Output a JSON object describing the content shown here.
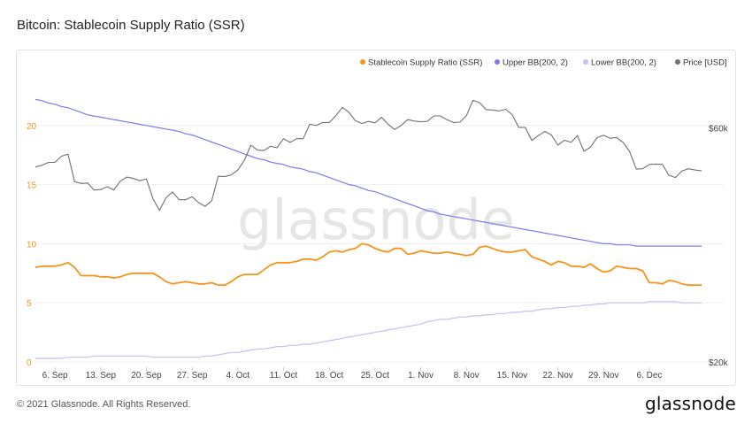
{
  "title": "Bitcoin: Stablecoin Supply Ratio (SSR)",
  "footer": {
    "copyright": "© 2021 Glassnode. All Rights Reserved.",
    "brand": "glassnode"
  },
  "watermark": "glassnode",
  "colors": {
    "ssr": "#f7931a",
    "upper": "#7f7cea",
    "lower": "#c3c1f5",
    "price": "#707070",
    "grid": "#efefef",
    "left_axis": "#f7931a",
    "right_axis": "#444444"
  },
  "chart_data": {
    "type": "line",
    "x": [
      "2021-09-03",
      "2021-09-04",
      "2021-09-05",
      "2021-09-06",
      "2021-09-07",
      "2021-09-08",
      "2021-09-09",
      "2021-09-10",
      "2021-09-11",
      "2021-09-12",
      "2021-09-13",
      "2021-09-14",
      "2021-09-15",
      "2021-09-16",
      "2021-09-17",
      "2021-09-18",
      "2021-09-19",
      "2021-09-20",
      "2021-09-21",
      "2021-09-22",
      "2021-09-23",
      "2021-09-24",
      "2021-09-25",
      "2021-09-26",
      "2021-09-27",
      "2021-09-28",
      "2021-09-29",
      "2021-09-30",
      "2021-10-01",
      "2021-10-02",
      "2021-10-03",
      "2021-10-04",
      "2021-10-05",
      "2021-10-06",
      "2021-10-07",
      "2021-10-08",
      "2021-10-09",
      "2021-10-10",
      "2021-10-11",
      "2021-10-12",
      "2021-10-13",
      "2021-10-14",
      "2021-10-15",
      "2021-10-16",
      "2021-10-17",
      "2021-10-18",
      "2021-10-19",
      "2021-10-20",
      "2021-10-21",
      "2021-10-22",
      "2021-10-23",
      "2021-10-24",
      "2021-10-25",
      "2021-10-26",
      "2021-10-27",
      "2021-10-28",
      "2021-10-29",
      "2021-10-30",
      "2021-10-31",
      "2021-11-01",
      "2021-11-02",
      "2021-11-03",
      "2021-11-04",
      "2021-11-05",
      "2021-11-06",
      "2021-11-07",
      "2021-11-08",
      "2021-11-09",
      "2021-11-10",
      "2021-11-11",
      "2021-11-12",
      "2021-11-13",
      "2021-11-14",
      "2021-11-15",
      "2021-11-16",
      "2021-11-17",
      "2021-11-18",
      "2021-11-19",
      "2021-11-20",
      "2021-11-21",
      "2021-11-22",
      "2021-11-23",
      "2021-11-24",
      "2021-11-25",
      "2021-11-26",
      "2021-11-27",
      "2021-11-28",
      "2021-11-29",
      "2021-11-30",
      "2021-12-01",
      "2021-12-02",
      "2021-12-03",
      "2021-12-04",
      "2021-12-05",
      "2021-12-06",
      "2021-12-07",
      "2021-12-08",
      "2021-12-09",
      "2021-12-10",
      "2021-12-11",
      "2021-12-12",
      "2021-12-13",
      "2021-12-14"
    ],
    "x_tick_labels": [
      "6. Sep",
      "13. Sep",
      "20. Sep",
      "27. Sep",
      "4. Oct",
      "11. Oct",
      "18. Oct",
      "25. Oct",
      "1. Nov",
      "8. Nov",
      "15. Nov",
      "22. Nov",
      "29. Nov",
      "6. Dec"
    ],
    "x_tick_dates": [
      "2021-09-06",
      "2021-09-13",
      "2021-09-20",
      "2021-09-27",
      "2021-10-04",
      "2021-10-11",
      "2021-10-18",
      "2021-10-25",
      "2021-11-01",
      "2021-11-08",
      "2021-11-15",
      "2021-11-22",
      "2021-11-29",
      "2021-12-06"
    ],
    "y_left": {
      "ticks": [
        0,
        5,
        10,
        15,
        20
      ],
      "range": [
        0,
        25
      ]
    },
    "y_right": {
      "scale": "log",
      "ticks": [
        20000,
        60000
      ],
      "tick_labels": [
        "$20k",
        "$60k"
      ],
      "range": [
        20000,
        80000
      ]
    },
    "legend_position": "top-right",
    "grid": true,
    "series": [
      {
        "name": "Stablecoin Supply Ratio (SSR)",
        "axis": "left",
        "values": [
          8.0,
          8.1,
          8.1,
          8.1,
          8.2,
          8.4,
          8.0,
          7.3,
          7.3,
          7.3,
          7.2,
          7.2,
          7.1,
          7.2,
          7.4,
          7.5,
          7.5,
          7.5,
          7.5,
          7.2,
          6.8,
          6.6,
          6.7,
          6.8,
          6.7,
          6.6,
          6.6,
          6.7,
          6.5,
          6.5,
          6.8,
          7.2,
          7.4,
          7.4,
          7.4,
          7.8,
          8.2,
          8.4,
          8.4,
          8.4,
          8.5,
          8.7,
          8.7,
          8.6,
          8.9,
          9.3,
          9.4,
          9.3,
          9.5,
          9.6,
          10.0,
          9.9,
          9.6,
          9.4,
          9.3,
          9.6,
          9.6,
          9.1,
          9.2,
          9.4,
          9.3,
          9.2,
          9.2,
          9.3,
          9.2,
          9.1,
          9.0,
          9.1,
          9.7,
          9.8,
          9.6,
          9.4,
          9.3,
          9.3,
          9.4,
          9.5,
          8.9,
          8.7,
          8.5,
          8.2,
          8.5,
          8.4,
          8.1,
          8.1,
          8.0,
          8.3,
          7.9,
          7.6,
          7.7,
          8.1,
          8.0,
          7.9,
          7.9,
          7.7,
          6.7,
          6.7,
          6.6,
          6.9,
          6.8,
          6.6,
          6.5,
          6.5,
          6.5
        ]
      },
      {
        "name": "Upper BB(200, 2)",
        "axis": "left",
        "values": [
          22.2,
          22.1,
          21.9,
          21.8,
          21.6,
          21.5,
          21.3,
          21.1,
          20.9,
          20.8,
          20.7,
          20.6,
          20.5,
          20.4,
          20.3,
          20.2,
          20.1,
          20.0,
          19.9,
          19.8,
          19.7,
          19.6,
          19.5,
          19.3,
          19.2,
          19.0,
          18.8,
          18.6,
          18.4,
          18.2,
          18.0,
          17.8,
          17.6,
          17.4,
          17.2,
          17.1,
          16.9,
          16.8,
          16.7,
          16.5,
          16.4,
          16.3,
          16.1,
          16.0,
          15.8,
          15.6,
          15.4,
          15.2,
          15.0,
          14.9,
          14.7,
          14.5,
          14.4,
          14.2,
          14.0,
          13.8,
          13.6,
          13.4,
          13.2,
          13.0,
          12.8,
          12.7,
          12.5,
          12.4,
          12.3,
          12.2,
          12.1,
          12.0,
          11.9,
          11.8,
          11.7,
          11.6,
          11.5,
          11.4,
          11.3,
          11.2,
          11.1,
          11.0,
          10.9,
          10.8,
          10.7,
          10.6,
          10.5,
          10.4,
          10.3,
          10.2,
          10.1,
          10.0,
          10.0,
          9.9,
          9.9,
          9.9,
          9.8,
          9.8,
          9.8,
          9.8,
          9.8,
          9.8,
          9.8,
          9.8,
          9.8,
          9.8,
          9.8
        ]
      },
      {
        "name": "Lower BB(200, 2)",
        "axis": "left",
        "values": [
          0.3,
          0.3,
          0.3,
          0.3,
          0.3,
          0.4,
          0.4,
          0.4,
          0.4,
          0.5,
          0.5,
          0.5,
          0.5,
          0.5,
          0.5,
          0.5,
          0.5,
          0.5,
          0.4,
          0.4,
          0.4,
          0.4,
          0.4,
          0.4,
          0.4,
          0.4,
          0.5,
          0.5,
          0.6,
          0.7,
          0.8,
          0.8,
          0.9,
          1.0,
          1.1,
          1.1,
          1.2,
          1.3,
          1.3,
          1.4,
          1.4,
          1.5,
          1.5,
          1.6,
          1.7,
          1.8,
          1.9,
          2.0,
          2.1,
          2.2,
          2.3,
          2.4,
          2.5,
          2.6,
          2.7,
          2.8,
          2.9,
          3.0,
          3.1,
          3.2,
          3.4,
          3.5,
          3.6,
          3.6,
          3.7,
          3.8,
          3.8,
          3.9,
          3.9,
          4.0,
          4.0,
          4.1,
          4.1,
          4.2,
          4.2,
          4.3,
          4.3,
          4.4,
          4.5,
          4.5,
          4.6,
          4.6,
          4.7,
          4.7,
          4.8,
          4.8,
          4.9,
          4.9,
          5.0,
          5.0,
          5.0,
          5.0,
          5.0,
          5.0,
          5.1,
          5.1,
          5.1,
          5.1,
          5.1,
          5.0,
          5.0,
          5.0,
          5.0
        ]
      },
      {
        "name": "Price [USD]",
        "axis": "right",
        "values": [
          49900,
          50300,
          51000,
          51000,
          52500,
          53000,
          46600,
          46200,
          46300,
          44800,
          44900,
          45500,
          44800,
          46700,
          47600,
          47300,
          46800,
          47200,
          43000,
          40700,
          43200,
          44400,
          42800,
          42800,
          43400,
          42200,
          41500,
          42600,
          47800,
          47700,
          48100,
          49200,
          51500,
          55300,
          54000,
          53900,
          55000,
          54600,
          57000,
          56000,
          57000,
          57000,
          61000,
          60600,
          61500,
          61500,
          63500,
          66000,
          64500,
          62000,
          61200,
          61800,
          61400,
          63000,
          61000,
          59500,
          60600,
          62300,
          61900,
          61700,
          61800,
          63400,
          63400,
          62300,
          61500,
          61600,
          63500,
          68200,
          67500,
          65300,
          65200,
          64900,
          65400,
          63800,
          60100,
          60100,
          56500,
          57800,
          59000,
          58000,
          55300,
          56600,
          56000,
          57800,
          53700,
          54800,
          57300,
          57900,
          57100,
          57300,
          56000,
          53600,
          49400,
          49500,
          50500,
          50600,
          50500,
          48000,
          47500,
          49000,
          49500,
          49200,
          49000
        ]
      }
    ]
  }
}
